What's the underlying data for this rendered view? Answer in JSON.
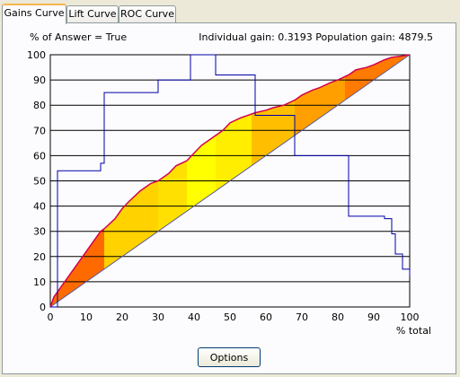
{
  "tabs": [
    {
      "label": "Gains Curve",
      "active": true
    },
    {
      "label": "Lift Curve",
      "active": false
    },
    {
      "label": "ROC Curve",
      "active": false
    }
  ],
  "options_label": "Options",
  "chart_data": {
    "type": "line",
    "title": "% of Answer = True",
    "stats": "Individual gain: 0.3193 Population gain: 4879.5",
    "xlabel": "% total",
    "ylabel": "",
    "xlim": [
      0,
      100
    ],
    "ylim": [
      0,
      100
    ],
    "x_ticks": [
      0,
      10,
      20,
      30,
      40,
      50,
      60,
      70,
      80,
      90,
      100
    ],
    "y_ticks": [
      0,
      10,
      20,
      30,
      40,
      50,
      60,
      70,
      80,
      90,
      100
    ],
    "grid": "horizontal",
    "gains": {
      "x": [
        0,
        1,
        2,
        3,
        5,
        8,
        10,
        12,
        14,
        15,
        18,
        20,
        22,
        25,
        28,
        30,
        33,
        35,
        38,
        40,
        42,
        45,
        48,
        50,
        53,
        55,
        57,
        60,
        62,
        65,
        68,
        70,
        73,
        75,
        78,
        80,
        83,
        85,
        88,
        90,
        93,
        95,
        98,
        100
      ],
      "y": [
        0,
        4,
        6,
        8,
        12,
        18,
        22,
        26,
        30,
        31,
        35,
        39,
        42,
        46,
        49,
        50,
        53,
        56,
        58,
        61,
        64,
        67,
        70,
        73,
        75,
        76,
        77,
        78,
        79,
        80,
        82,
        84,
        86,
        87,
        89,
        90,
        92,
        94,
        95,
        96,
        98,
        99,
        99.5,
        100
      ]
    },
    "baseline": {
      "x": [
        0,
        100
      ],
      "y": [
        0,
        100
      ]
    },
    "bands": [
      {
        "x0": 0,
        "x1": 15,
        "color": "#ff6a00"
      },
      {
        "x0": 15,
        "x1": 30,
        "color": "#ffd200"
      },
      {
        "x0": 30,
        "x1": 38,
        "color": "#ffe000"
      },
      {
        "x0": 38,
        "x1": 46,
        "color": "#ffff00"
      },
      {
        "x0": 46,
        "x1": 56,
        "color": "#ffee00"
      },
      {
        "x0": 56,
        "x1": 68,
        "color": "#ffbf00"
      },
      {
        "x0": 68,
        "x1": 82,
        "color": "#ffa000"
      },
      {
        "x0": 82,
        "x1": 100,
        "color": "#ff7a00"
      }
    ],
    "gains_line_color": "#d4004a",
    "probability": {
      "color": "#0000aa",
      "x": [
        0,
        2,
        2,
        14,
        14,
        15,
        15,
        30,
        30,
        39,
        39,
        46,
        46,
        57,
        57,
        68,
        68,
        83,
        83,
        93,
        93,
        95,
        95,
        96,
        96,
        98,
        98,
        100,
        100
      ],
      "y": [
        0,
        0,
        54,
        54,
        57,
        57,
        85,
        85,
        90,
        90,
        100,
        100,
        92,
        92,
        76,
        76,
        60,
        60,
        36,
        36,
        35,
        35,
        29,
        29,
        21,
        21,
        15,
        15,
        12
      ]
    }
  }
}
